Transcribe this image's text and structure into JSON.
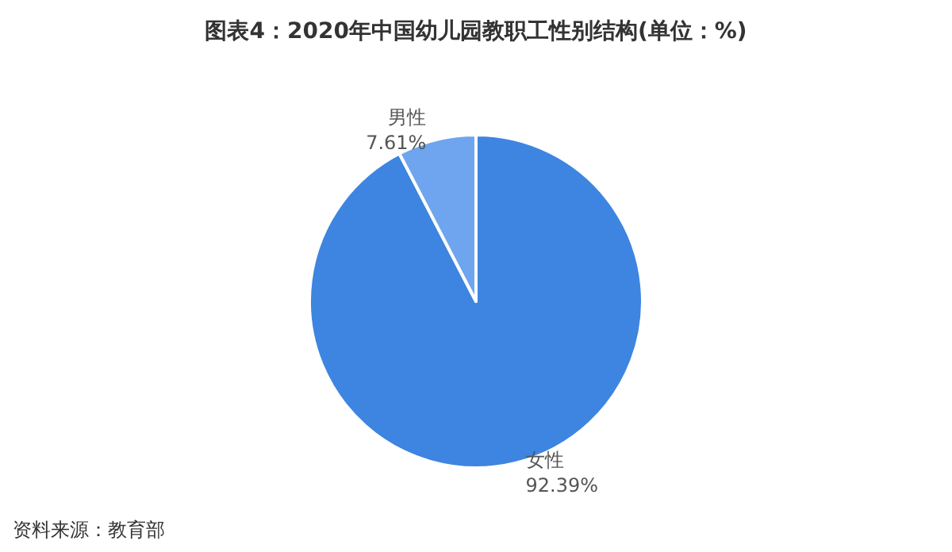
{
  "chart_data": {
    "type": "pie",
    "title": "图表4：2020年中国幼儿园教职工性别结构(单位：%)",
    "categories": [
      "女性",
      "男性"
    ],
    "values": [
      92.39,
      7.61
    ],
    "value_labels": [
      "92.39%",
      "7.61%"
    ],
    "colors": [
      "#3d85e0",
      "#6fa5ee"
    ],
    "annotations": [
      "资料来源：教育部"
    ],
    "legend": false
  }
}
